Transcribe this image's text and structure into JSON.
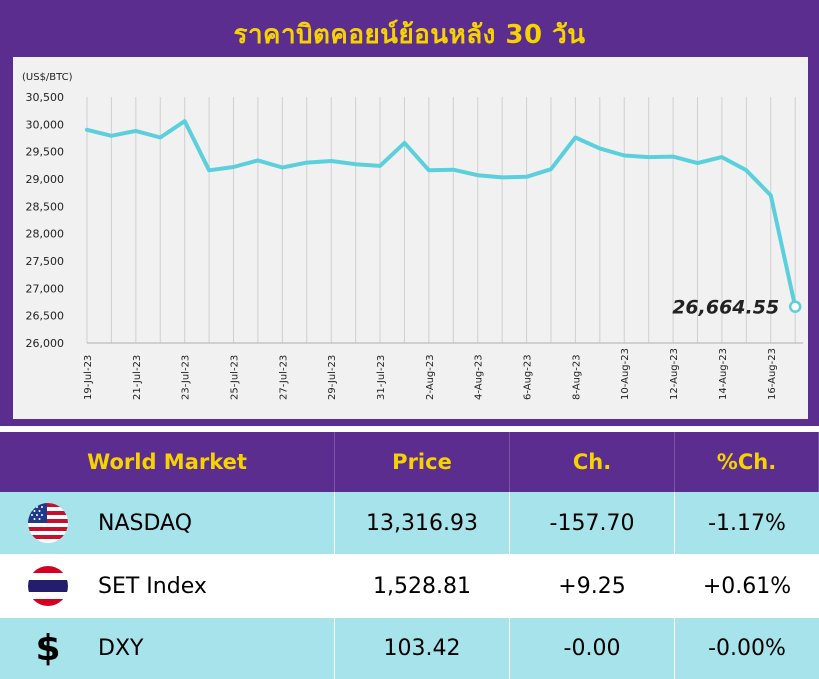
{
  "chart_data": {
    "type": "line",
    "title": "ราคาบิตคอยน์ย้อนหลัง 30 วัน",
    "unit_label": "(US$/BTC)",
    "y_ticks": [
      "30,500",
      "30,000",
      "29,500",
      "29,000",
      "28,500",
      "28,000",
      "27,500",
      "27,000",
      "26,500",
      "26,000"
    ],
    "ylim": [
      26000,
      30500
    ],
    "x_tick_labels": [
      "19-Jul-23",
      "21-Jul-23",
      "23-Jul-23",
      "25-Jul-23",
      "27-Jul-23",
      "29-Jul-23",
      "31-Jul-23",
      "2-Aug-23",
      "4-Aug-23",
      "6-Aug-23",
      "8-Aug-23",
      "10-Aug-23",
      "12-Aug-23",
      "14-Aug-23",
      "16-Aug-23"
    ],
    "series": [
      {
        "dates": [
          "19-Jul-23",
          "20-Jul-23",
          "21-Jul-23",
          "22-Jul-23",
          "23-Jul-23",
          "24-Jul-23",
          "25-Jul-23",
          "26-Jul-23",
          "27-Jul-23",
          "28-Jul-23",
          "29-Jul-23",
          "30-Jul-23",
          "31-Jul-23",
          "1-Aug-23",
          "2-Aug-23",
          "3-Aug-23",
          "4-Aug-23",
          "5-Aug-23",
          "6-Aug-23",
          "7-Aug-23",
          "8-Aug-23",
          "9-Aug-23",
          "10-Aug-23",
          "11-Aug-23",
          "12-Aug-23",
          "13-Aug-23",
          "14-Aug-23",
          "15-Aug-23",
          "16-Aug-23",
          "17-Aug-23"
        ],
        "values": [
          29900,
          29790,
          29880,
          29760,
          30060,
          29160,
          29220,
          29340,
          29210,
          29300,
          29330,
          29270,
          29240,
          29660,
          29160,
          29170,
          29070,
          29030,
          29040,
          29180,
          29760,
          29560,
          29430,
          29400,
          29410,
          29290,
          29400,
          29160,
          28700,
          26664.55
        ],
        "color": "#5bd0dc"
      }
    ],
    "last_value_label": "26,664.55",
    "grid": "vertical"
  },
  "table": {
    "headers": [
      "World Market",
      "Price",
      "Ch.",
      "%Ch."
    ],
    "rows": [
      {
        "icon": "us-flag-icon",
        "name": "NASDAQ",
        "price": "13,316.93",
        "change": "-157.70",
        "pct": "-1.17%",
        "bg": "#a6e3ea"
      },
      {
        "icon": "thai-flag-icon",
        "name": "SET Index",
        "price": "1,528.81",
        "change": "+9.25",
        "pct": "+0.61%",
        "bg": "#ffffff"
      },
      {
        "icon": "dollar-icon",
        "name": "DXY",
        "price": "103.42",
        "change": "-0.00",
        "pct": "-0.00%",
        "bg": "#a6e3ea",
        "symbol": "$"
      }
    ]
  }
}
